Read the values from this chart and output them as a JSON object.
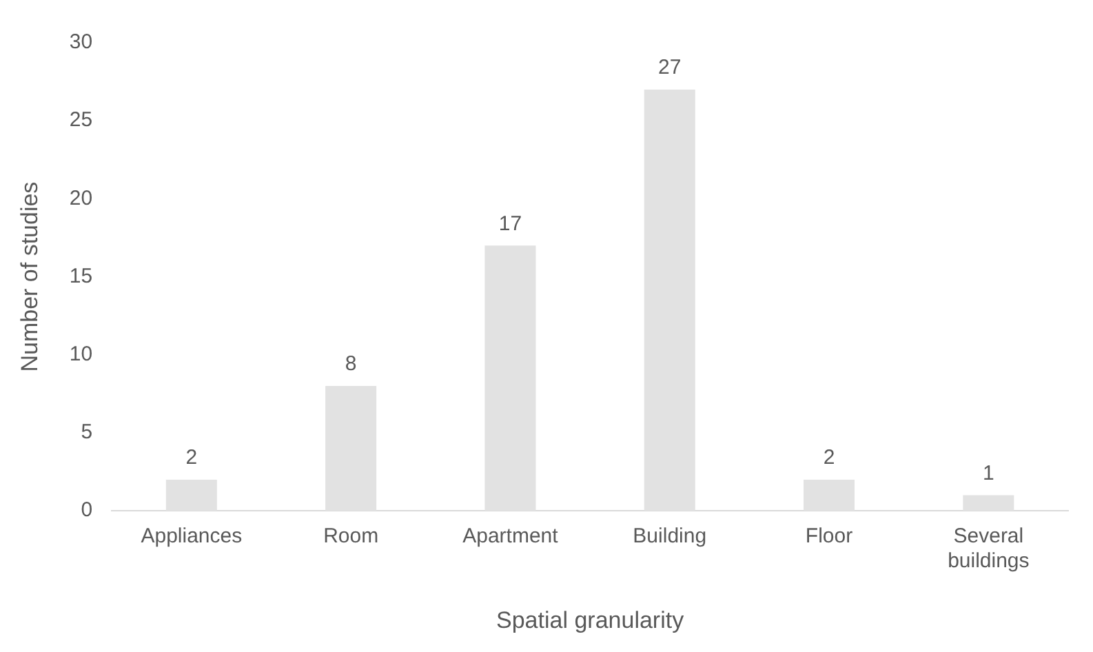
{
  "chart_data": {
    "type": "bar",
    "xlabel": "Spatial granularity",
    "ylabel": "Number of studies",
    "categories": [
      "Appliances",
      "Room",
      "Apartment",
      "Building",
      "Floor",
      "Several buildings"
    ],
    "values": [
      2,
      8,
      17,
      27,
      2,
      1
    ],
    "color": "#e2e2e2",
    "ylim": [
      0,
      30
    ],
    "yticks": [
      0,
      5,
      10,
      15,
      20,
      25,
      30
    ],
    "grid": false,
    "legend": false,
    "data_labels": true
  }
}
